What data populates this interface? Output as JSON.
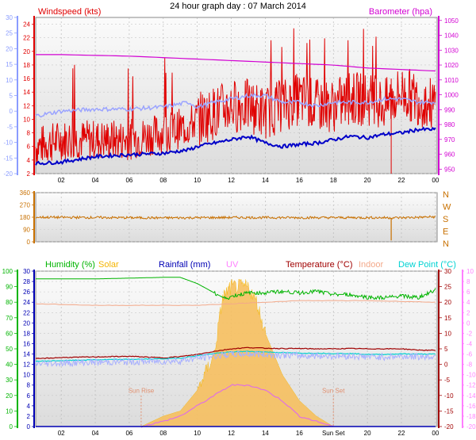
{
  "title": "24 hour graph day : 07 March 2014",
  "colors": {
    "wind": "#e00000",
    "gust_avg": "#9aa3ff",
    "baro": "#d200d2",
    "hum": "#00b400",
    "solar": "#f4b400",
    "rain": "#0000b4",
    "uv": "#ff7fff",
    "temp": "#a00000",
    "indoor": "#f3a98a",
    "dew": "#00d2d2",
    "dir": "#c87000"
  },
  "chart_data": [
    {
      "type": "line",
      "name": "wind-baro",
      "title": "24 hour graph day : 07 March 2014",
      "left_label": "Windspeed (kts)",
      "right_label": "Barometer (hpa)",
      "x_ticks": [
        "02",
        "04",
        "06",
        "08",
        "10",
        "12",
        "14",
        "16",
        "18",
        "20",
        "22",
        "00"
      ],
      "x_range": [
        0.5,
        24.1
      ],
      "y_left": {
        "range": [
          2,
          25
        ],
        "ticks": [
          2,
          4,
          6,
          8,
          10,
          12,
          14,
          16,
          18,
          20,
          22,
          24
        ]
      },
      "y_right": {
        "range": [
          947,
          1052
        ],
        "ticks": [
          950,
          960,
          970,
          980,
          990,
          1000,
          1010,
          1020,
          1030,
          1040,
          1050
        ]
      },
      "y_far_left": {
        "range": [
          -20,
          30
        ],
        "ticks": [
          -20,
          -15,
          -10,
          -5,
          0,
          5,
          10,
          15,
          20,
          25,
          30
        ]
      },
      "series": [
        {
          "name": "Windspeed",
          "x": [
            0.5,
            2,
            4,
            6,
            8,
            9.5,
            10,
            11,
            12,
            13,
            14,
            15,
            16,
            17,
            18,
            19,
            20,
            21,
            22,
            23,
            24
          ],
          "values": [
            6,
            7,
            7,
            7,
            8,
            9,
            10,
            11,
            12,
            12,
            11,
            12,
            13,
            12,
            12,
            13,
            13,
            12,
            14,
            13,
            12
          ]
        },
        {
          "name": "Gust average",
          "x": [
            0.5,
            2,
            4,
            6,
            8,
            9.5,
            10,
            11,
            12,
            13,
            14,
            15,
            16,
            17,
            18,
            19,
            20,
            21,
            22,
            23,
            24
          ],
          "values": [
            10.5,
            11.2,
            11.5,
            11.5,
            11.8,
            12.5,
            11.8,
            12.5,
            13,
            13.5,
            13.5,
            12.5,
            12.5,
            12,
            12.5,
            12.5,
            12.5,
            13,
            13,
            12.5,
            12.5
          ]
        },
        {
          "name": "Lower trace",
          "x": [
            0.5,
            2,
            4,
            6,
            8,
            9.5,
            10,
            11,
            12,
            13,
            14,
            15,
            16,
            17,
            18,
            19,
            20,
            21,
            22,
            23,
            24
          ],
          "values": [
            3.5,
            3.7,
            4.5,
            4.8,
            5,
            5.5,
            6,
            6.5,
            7,
            7.5,
            6.5,
            6,
            6.3,
            6.5,
            7,
            7.5,
            7.3,
            7.8,
            8,
            8.5,
            8.5
          ]
        },
        {
          "name": "Barometer",
          "x": [
            0.5,
            2,
            4,
            6,
            8,
            10,
            12,
            14,
            16,
            18,
            20,
            22,
            24
          ],
          "values": [
            1027,
            1027,
            1026.5,
            1026,
            1025,
            1024,
            1023,
            1022,
            1021,
            1020,
            1018,
            1017,
            1016
          ]
        }
      ],
      "wind_dir": {
        "title_letters": [
          "N",
          "W",
          "S",
          "E",
          "N"
        ],
        "range": [
          0,
          360
        ],
        "ticks": [
          0,
          90,
          180,
          270,
          360
        ],
        "x": [
          0.5,
          4,
          8,
          12,
          16,
          20,
          22,
          24
        ],
        "values": [
          180,
          178,
          175,
          178,
          177,
          177,
          176,
          183
        ],
        "spike": {
          "x": 21.4,
          "value": 10
        }
      }
    },
    {
      "type": "line",
      "name": "weather",
      "legend": [
        "Humidity (%)",
        "Solar",
        "Rainfall (mm)",
        "UV",
        "Temperature (°C)",
        "Indoor",
        "Dew Point (°C)"
      ],
      "x_ticks": [
        "02",
        "04",
        "06",
        "08",
        "10",
        "12",
        "14",
        "16",
        "Sun Set",
        "20",
        "22",
        "00"
      ],
      "annotations": [
        {
          "text": "Sun Rise",
          "x": 6.7
        },
        {
          "text": "Sun Set",
          "x": 18
        }
      ],
      "y_hum": {
        "range": [
          0,
          100
        ],
        "ticks": [
          0,
          10,
          20,
          30,
          40,
          50,
          60,
          70,
          80,
          90,
          100
        ]
      },
      "y_rain": {
        "range": [
          0,
          30
        ],
        "ticks": [
          0,
          2,
          4,
          6,
          8,
          10,
          12,
          14,
          16,
          18,
          20,
          22,
          24,
          26,
          28,
          30
        ]
      },
      "y_temp": {
        "range": [
          -20,
          30
        ],
        "ticks": [
          -20,
          -15,
          -10,
          -5,
          0,
          5,
          10,
          15,
          20,
          25,
          30
        ]
      },
      "y_dew": {
        "range": [
          -20,
          10
        ],
        "ticks": [
          -20,
          -18,
          -16,
          -14,
          -12,
          -10,
          -8,
          -6,
          -4,
          -2,
          0,
          2,
          4,
          6,
          8,
          10
        ]
      },
      "series": [
        {
          "name": "Humidity",
          "x": [
            0.5,
            2,
            4,
            6,
            8,
            9,
            10,
            11,
            11.7,
            12,
            13,
            14,
            15,
            16,
            17,
            18,
            19,
            20,
            21,
            22,
            23,
            24
          ],
          "values": [
            95,
            95,
            95,
            95.5,
            96,
            96,
            92,
            86,
            82,
            84,
            86,
            86,
            87,
            86,
            87,
            85,
            85,
            83,
            83,
            84,
            83,
            88
          ]
        },
        {
          "name": "Temperature",
          "x": [
            0.5,
            2,
            4,
            6,
            8,
            9,
            10,
            11,
            12,
            13,
            14,
            15,
            16,
            17,
            18,
            19,
            20,
            21,
            22,
            23,
            24
          ],
          "values": [
            1.8,
            2.2,
            2.4,
            2.6,
            2.1,
            2.5,
            3.2,
            4.2,
            5,
            5.4,
            5.2,
            5.1,
            5.1,
            5,
            5,
            5.1,
            5,
            5,
            5,
            4.6,
            4.5
          ]
        },
        {
          "name": "Indoor",
          "x": [
            0.5,
            4,
            8,
            10,
            12,
            14,
            16,
            18,
            20,
            24
          ],
          "values": [
            19.5,
            19,
            19,
            19,
            19.5,
            20,
            20.5,
            20.5,
            20.5,
            20
          ]
        },
        {
          "name": "Dew Point",
          "x": [
            0.5,
            2,
            4,
            6,
            8,
            9,
            10,
            11,
            12,
            13,
            14,
            15,
            16,
            17,
            18,
            19,
            20,
            21,
            22,
            23,
            24
          ],
          "values": [
            1,
            1.2,
            1.5,
            1.6,
            1.8,
            2,
            2.8,
            3.5,
            4,
            4.2,
            4,
            3.8,
            3.6,
            3.6,
            3.5,
            3.5,
            3.2,
            3.2,
            3.4,
            3.3,
            3.3
          ]
        },
        {
          "name": "Rainfall",
          "x": [
            0.5,
            24
          ],
          "values": [
            0,
            0
          ]
        },
        {
          "name": "Solar",
          "x": [
            6.7,
            8,
            9,
            10,
            11,
            11.5,
            12,
            13,
            13.5,
            14,
            15,
            16,
            17,
            18
          ],
          "values": [
            0,
            2,
            3,
            7,
            14,
            25,
            27,
            27,
            24,
            18,
            10,
            5,
            2,
            0
          ]
        },
        {
          "name": "UV",
          "x": [
            6.7,
            8,
            9,
            10,
            11,
            12,
            13,
            14,
            15,
            16,
            17,
            18
          ],
          "values": [
            0,
            1,
            2,
            4,
            6,
            8,
            8,
            7,
            5,
            2,
            1,
            0
          ]
        }
      ]
    }
  ]
}
